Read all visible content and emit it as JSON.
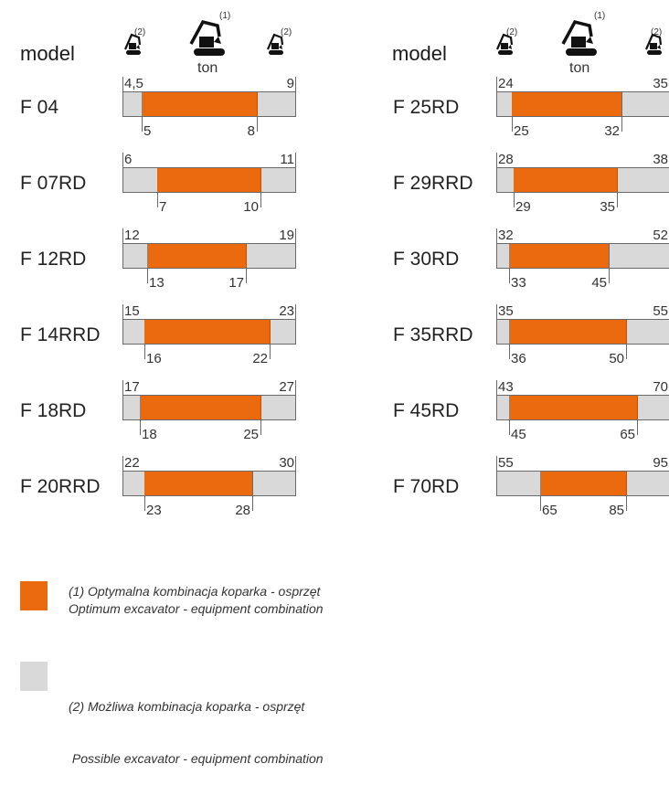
{
  "header": {
    "model_label": "model",
    "unit_label": "ton",
    "note_optimal": "(1)",
    "note_possible": "(2)"
  },
  "colors": {
    "optimal": "#ec6a0e",
    "possible": "#d9d9d9",
    "outline": "#6a6a6a"
  },
  "icons": {
    "small": "excavator-small-icon",
    "large": "excavator-large-icon"
  },
  "legend": [
    {
      "color": "#ec6a0e",
      "line1": "(1) Optymalna kombinacja koparka - osprzęt",
      "line2": "Optimum excavator - equipment combination"
    },
    {
      "color": "#d9d9d9",
      "line1": "(2) Możliwa kombinacja koparka - osprzęt",
      "line2": " Possible excavator - equipment combination"
    }
  ],
  "chart_data": {
    "type": "range-bar",
    "unit": "ton",
    "series": [
      "(1) optimal",
      "(2) possible"
    ],
    "columns": [
      {
        "rows": [
          {
            "model": "F 04",
            "min_label": "4,5",
            "min": 4.5,
            "opt_min": 5,
            "opt_max": 8,
            "max": 9
          },
          {
            "model": "F 07RD",
            "min_label": "6",
            "min": 6,
            "opt_min": 7,
            "opt_max": 10,
            "max": 11
          },
          {
            "model": "F 12RD",
            "min_label": "12",
            "min": 12,
            "opt_min": 13,
            "opt_max": 17,
            "max": 19
          },
          {
            "model": "F 14RRD",
            "min_label": "15",
            "min": 15,
            "opt_min": 16,
            "opt_max": 22,
            "max": 23
          },
          {
            "model": "F 18RD",
            "min_label": "17",
            "min": 17,
            "opt_min": 18,
            "opt_max": 25,
            "max": 27
          },
          {
            "model": "F 20RRD",
            "min_label": "22",
            "min": 22,
            "opt_min": 23,
            "opt_max": 28,
            "max": 30
          }
        ]
      },
      {
        "rows": [
          {
            "model": "F 25RD",
            "min_label": "24",
            "min": 24,
            "opt_min": 25,
            "opt_max": 32,
            "max": 35
          },
          {
            "model": "F 29RRD",
            "min_label": "28",
            "min": 28,
            "opt_min": 29,
            "opt_max": 35,
            "max": 38
          },
          {
            "model": "F 30RD",
            "min_label": "32",
            "min": 32,
            "opt_min": 33,
            "opt_max": 45,
            "max": 52
          },
          {
            "model": "F 35RRD",
            "min_label": "35",
            "min": 35,
            "opt_min": 36,
            "opt_max": 50,
            "max": 55
          },
          {
            "model": "F 45RD",
            "min_label": "43",
            "min": 43,
            "opt_min": 45,
            "opt_max": 65,
            "max": 70
          },
          {
            "model": "F 70RD",
            "min_label": "55",
            "min": 55,
            "opt_min": 65,
            "opt_max": 85,
            "max": 95
          }
        ]
      }
    ]
  }
}
